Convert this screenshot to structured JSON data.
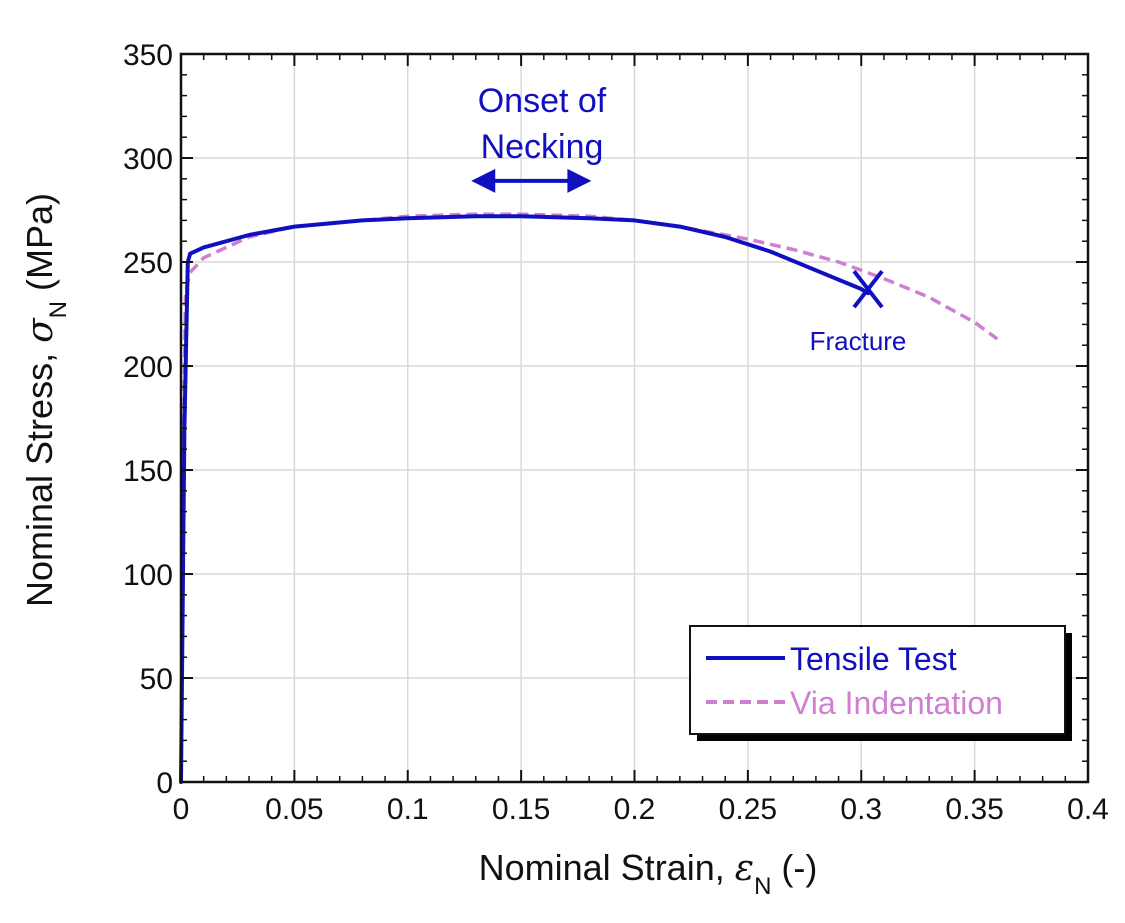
{
  "chart_data": {
    "type": "line",
    "xlabel": {
      "prefix": "Nominal Strain, ",
      "symbol": "ε",
      "subscript": "N",
      "suffix": " (-)"
    },
    "ylabel": {
      "prefix": "Nominal Stress, ",
      "symbol": "σ",
      "subscript": "N",
      "suffix": " (MPa)"
    },
    "xlim": [
      0,
      0.4
    ],
    "ylim": [
      0,
      350
    ],
    "x_ticks": [
      "0",
      "0.05",
      "0.1",
      "0.15",
      "0.2",
      "0.25",
      "0.3",
      "0.35",
      "0.4"
    ],
    "y_ticks": [
      "0",
      "50",
      "100",
      "150",
      "200",
      "250",
      "300",
      "350"
    ],
    "x_tick_values": [
      0,
      0.05,
      0.1,
      0.15,
      0.2,
      0.25,
      0.3,
      0.35,
      0.4
    ],
    "y_tick_values": [
      0,
      50,
      100,
      150,
      200,
      250,
      300,
      350
    ],
    "grid": true,
    "series": [
      {
        "name": "Tensile Test",
        "color": "#1010c0",
        "style": "solid",
        "x": [
          0,
          0.0015,
          0.003,
          0.004,
          0.01,
          0.03,
          0.05,
          0.08,
          0.1,
          0.13,
          0.15,
          0.18,
          0.2,
          0.22,
          0.24,
          0.26,
          0.28,
          0.3,
          0.303
        ],
        "y": [
          0,
          170,
          250,
          254,
          257,
          263,
          267,
          270,
          271,
          272,
          272,
          271,
          270,
          267,
          262,
          255,
          246,
          237,
          235
        ]
      },
      {
        "name": "Via Indentation",
        "color": "#d07ed2",
        "style": "dashed",
        "x": [
          0,
          0.001,
          0.002,
          0.004,
          0.01,
          0.03,
          0.05,
          0.08,
          0.1,
          0.13,
          0.15,
          0.18,
          0.2,
          0.22,
          0.25,
          0.27,
          0.29,
          0.31,
          0.33,
          0.35,
          0.36
        ],
        "y": [
          0,
          150,
          235,
          245,
          252,
          262,
          267,
          270,
          272,
          273,
          273,
          272,
          270,
          267,
          261,
          256,
          250,
          242,
          233,
          221,
          213
        ]
      }
    ],
    "legend": {
      "position": "bottom-right",
      "entries": [
        "Tensile Test",
        "Via Indentation"
      ]
    },
    "annotations": {
      "necking_line1": "Onset of",
      "necking_line2": "Necking",
      "necking_arrow_x": [
        0.128,
        0.181
      ],
      "necking_arrow_y": 289,
      "fracture_label": "Fracture",
      "fracture_point": [
        0.303,
        235
      ]
    }
  }
}
